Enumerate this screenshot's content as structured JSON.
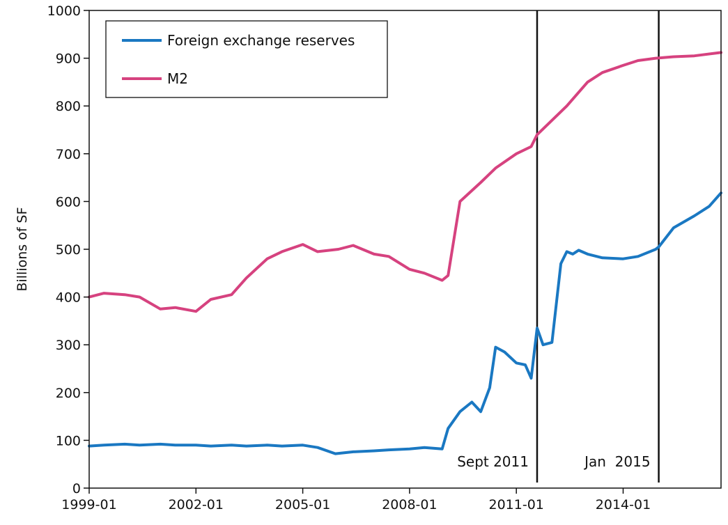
{
  "chart_data": {
    "type": "line",
    "ylabel": "Billions of SF",
    "xlabel": "",
    "title": "",
    "ylim": [
      0,
      1000
    ],
    "xlim": [
      "1999-01",
      "2016-10"
    ],
    "yticks": [
      0,
      100,
      200,
      300,
      400,
      500,
      600,
      700,
      800,
      900,
      1000
    ],
    "xticks": [
      "1999-01",
      "2002-01",
      "2005-01",
      "2008-01",
      "2011-01",
      "2014-01"
    ],
    "legend_position": "top-left",
    "grid": false,
    "series": [
      {
        "name": "Foreign exchange reserves",
        "color": "#1a78c2",
        "x": [
          "1999-01",
          "1999-06",
          "2000-01",
          "2000-06",
          "2001-01",
          "2001-06",
          "2002-01",
          "2002-06",
          "2003-01",
          "2003-06",
          "2004-01",
          "2004-06",
          "2005-01",
          "2005-06",
          "2005-12",
          "2006-06",
          "2007-01",
          "2007-06",
          "2008-01",
          "2008-06",
          "2008-12",
          "2009-02",
          "2009-06",
          "2009-10",
          "2010-01",
          "2010-04",
          "2010-06",
          "2010-09",
          "2011-01",
          "2011-04",
          "2011-06",
          "2011-08",
          "2011-10",
          "2012-01",
          "2012-04",
          "2012-06",
          "2012-08",
          "2012-10",
          "2013-01",
          "2013-06",
          "2014-01",
          "2014-06",
          "2014-12",
          "2015-01",
          "2015-06",
          "2016-01",
          "2016-06",
          "2016-10"
        ],
        "values": [
          88,
          90,
          92,
          90,
          92,
          90,
          90,
          88,
          90,
          88,
          90,
          88,
          90,
          85,
          72,
          76,
          78,
          80,
          82,
          85,
          82,
          125,
          160,
          180,
          160,
          210,
          295,
          285,
          262,
          258,
          230,
          335,
          300,
          305,
          470,
          495,
          490,
          498,
          490,
          482,
          480,
          485,
          500,
          505,
          545,
          570,
          590,
          618
        ]
      },
      {
        "name": "M2",
        "color": "#d6427f",
        "x": [
          "1999-01",
          "1999-06",
          "2000-01",
          "2000-06",
          "2001-01",
          "2001-06",
          "2002-01",
          "2002-06",
          "2003-01",
          "2003-06",
          "2004-01",
          "2004-06",
          "2005-01",
          "2005-06",
          "2006-01",
          "2006-06",
          "2007-01",
          "2007-06",
          "2008-01",
          "2008-06",
          "2008-12",
          "2009-02",
          "2009-06",
          "2010-01",
          "2010-06",
          "2011-01",
          "2011-06",
          "2011-08",
          "2012-01",
          "2012-06",
          "2013-01",
          "2013-06",
          "2014-01",
          "2014-06",
          "2014-12",
          "2015-06",
          "2016-01",
          "2016-10"
        ],
        "values": [
          400,
          408,
          405,
          400,
          375,
          378,
          370,
          395,
          405,
          440,
          480,
          495,
          510,
          495,
          500,
          508,
          490,
          485,
          458,
          450,
          435,
          445,
          600,
          640,
          670,
          700,
          715,
          740,
          770,
          800,
          850,
          870,
          885,
          895,
          900,
          903,
          905,
          912
        ]
      }
    ],
    "annotations": [
      {
        "label": "Sept 2011",
        "x": "2011-08"
      },
      {
        "label": "Jan  2015",
        "x": "2015-01"
      }
    ]
  }
}
